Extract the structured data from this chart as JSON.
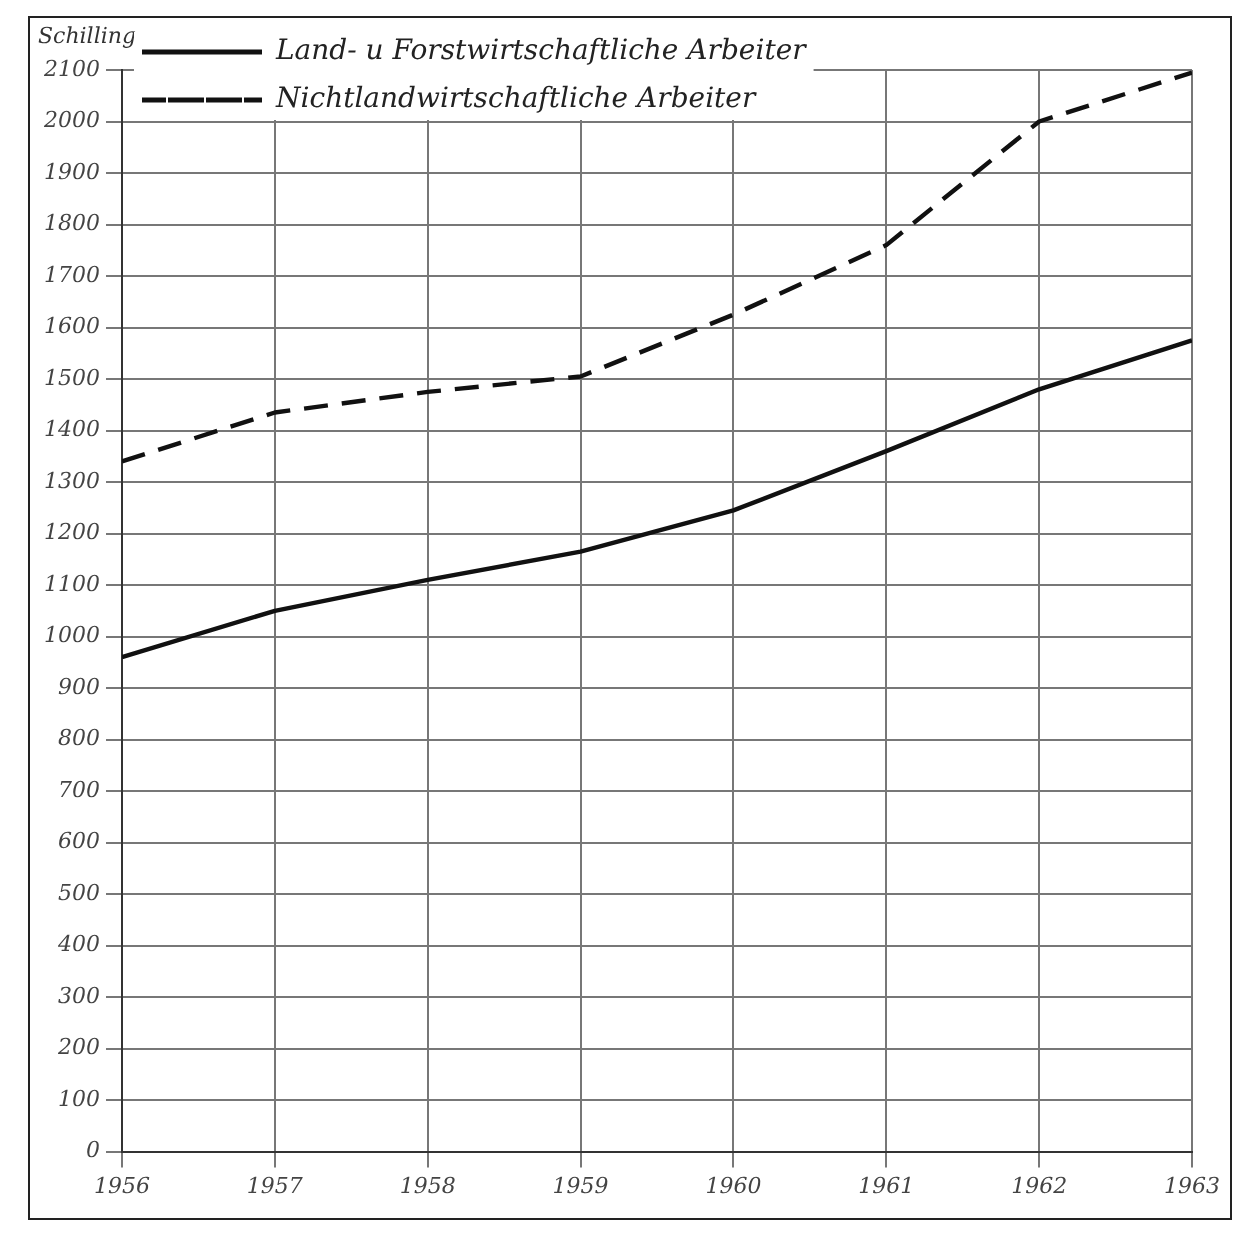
{
  "chart_data": {
    "type": "line",
    "ylabel": "Schilling",
    "x": [
      1956,
      1957,
      1958,
      1959,
      1960,
      1961,
      1962,
      1963
    ],
    "xlim": [
      1956,
      1963
    ],
    "xticks": [
      1956,
      1957,
      1958,
      1959,
      1960,
      1961,
      1962,
      1963
    ],
    "ylim": [
      0,
      2100
    ],
    "yticks": [
      0,
      100,
      200,
      300,
      400,
      500,
      600,
      700,
      800,
      900,
      1000,
      1100,
      1200,
      1300,
      1400,
      1500,
      1600,
      1700,
      1800,
      1900,
      2000,
      2100
    ],
    "grid": true,
    "legend": "top left",
    "marker": "none",
    "series": [
      {
        "name": "Land- u Forstwirtschaftliche Arbeiter",
        "color": "#111111",
        "line_style": "solid",
        "values": [
          960,
          1050,
          1110,
          1165,
          1245,
          1360,
          1480,
          1575
        ]
      },
      {
        "name": "Nichtlandwirtschaftliche Arbeiter",
        "color": "#111111",
        "line_style": "dashed",
        "values": [
          1340,
          1435,
          1475,
          1505,
          1625,
          1760,
          2000,
          2095
        ]
      }
    ]
  }
}
